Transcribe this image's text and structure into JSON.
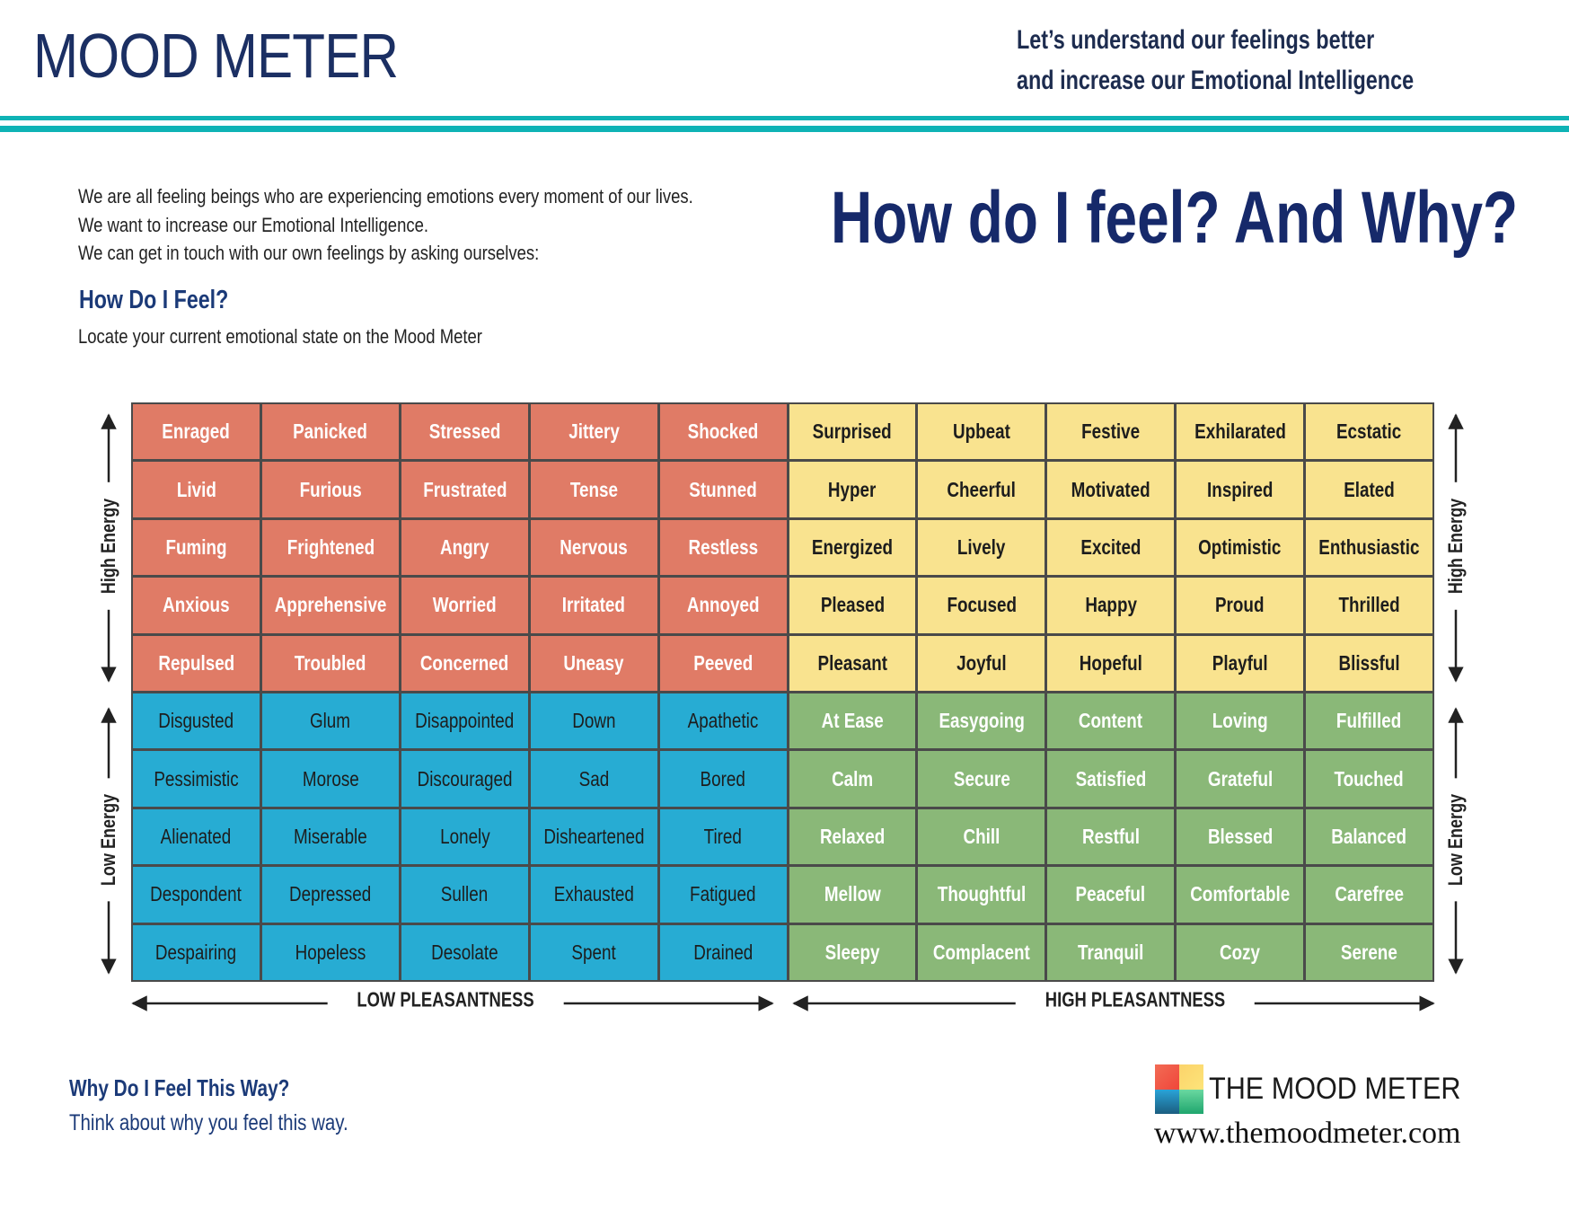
{
  "header": {
    "title": "MOOD METER",
    "tagline": [
      "Let’s understand our feelings better",
      "and increase our Emotional Intelligence"
    ],
    "accent_color": "#0fb3b5"
  },
  "intro": {
    "lines": [
      "We are all feeling beings who are experiencing emotions every moment of our lives.",
      "We want to increase our Emotional Intelligence.",
      "We can get in touch with our own feelings by asking ourselves:"
    ],
    "heading": "How Do I Feel?",
    "subtext": "Locate your current emotional state on the Mood Meter"
  },
  "big_heading": "How do I feel? And Why?",
  "grid": {
    "colors": {
      "red": "#e07b66",
      "yellow": "#f9e38f",
      "blue": "#27acd3",
      "green": "#8ab878"
    },
    "rows": [
      [
        "Enraged",
        "Panicked",
        "Stressed",
        "Jittery",
        "Shocked",
        "Surprised",
        "Upbeat",
        "Festive",
        "Exhilarated",
        "Ecstatic"
      ],
      [
        "Livid",
        "Furious",
        "Frustrated",
        "Tense",
        "Stunned",
        "Hyper",
        "Cheerful",
        "Motivated",
        "Inspired",
        "Elated"
      ],
      [
        "Fuming",
        "Frightened",
        "Angry",
        "Nervous",
        "Restless",
        "Energized",
        "Lively",
        "Excited",
        "Optimistic",
        "Enthusiastic"
      ],
      [
        "Anxious",
        "Apprehensive",
        "Worried",
        "Irritated",
        "Annoyed",
        "Pleased",
        "Focused",
        "Happy",
        "Proud",
        "Thrilled"
      ],
      [
        "Repulsed",
        "Troubled",
        "Concerned",
        "Uneasy",
        "Peeved",
        "Pleasant",
        "Joyful",
        "Hopeful",
        "Playful",
        "Blissful"
      ],
      [
        "Disgusted",
        "Glum",
        "Disappointed",
        "Down",
        "Apathetic",
        "At Ease",
        "Easygoing",
        "Content",
        "Loving",
        "Fulfilled"
      ],
      [
        "Pessimistic",
        "Morose",
        "Discouraged",
        "Sad",
        "Bored",
        "Calm",
        "Secure",
        "Satisfied",
        "Grateful",
        "Touched"
      ],
      [
        "Alienated",
        "Miserable",
        "Lonely",
        "Disheartened",
        "Tired",
        "Relaxed",
        "Chill",
        "Restful",
        "Blessed",
        "Balanced"
      ],
      [
        "Despondent",
        "Depressed",
        "Sullen",
        "Exhausted",
        "Fatigued",
        "Mellow",
        "Thoughtful",
        "Peaceful",
        "Comfortable",
        "Carefree"
      ],
      [
        "Despairing",
        "Hopeless",
        "Desolate",
        "Spent",
        "Drained",
        "Sleepy",
        "Complacent",
        "Tranquil",
        "Cozy",
        "Serene"
      ]
    ]
  },
  "axes": {
    "high_energy": "High Energy",
    "low_energy": "Low Energy",
    "low_pleasantness": "LOW PLEASANTNESS",
    "high_pleasantness": "HIGH PLEASANTNESS"
  },
  "footer": {
    "why_heading": "Why Do I Feel This Way?",
    "why_text": "Think about why you feel this way.",
    "logo_text": "THE MOOD METER",
    "url": "www.themoodmeter.com"
  }
}
